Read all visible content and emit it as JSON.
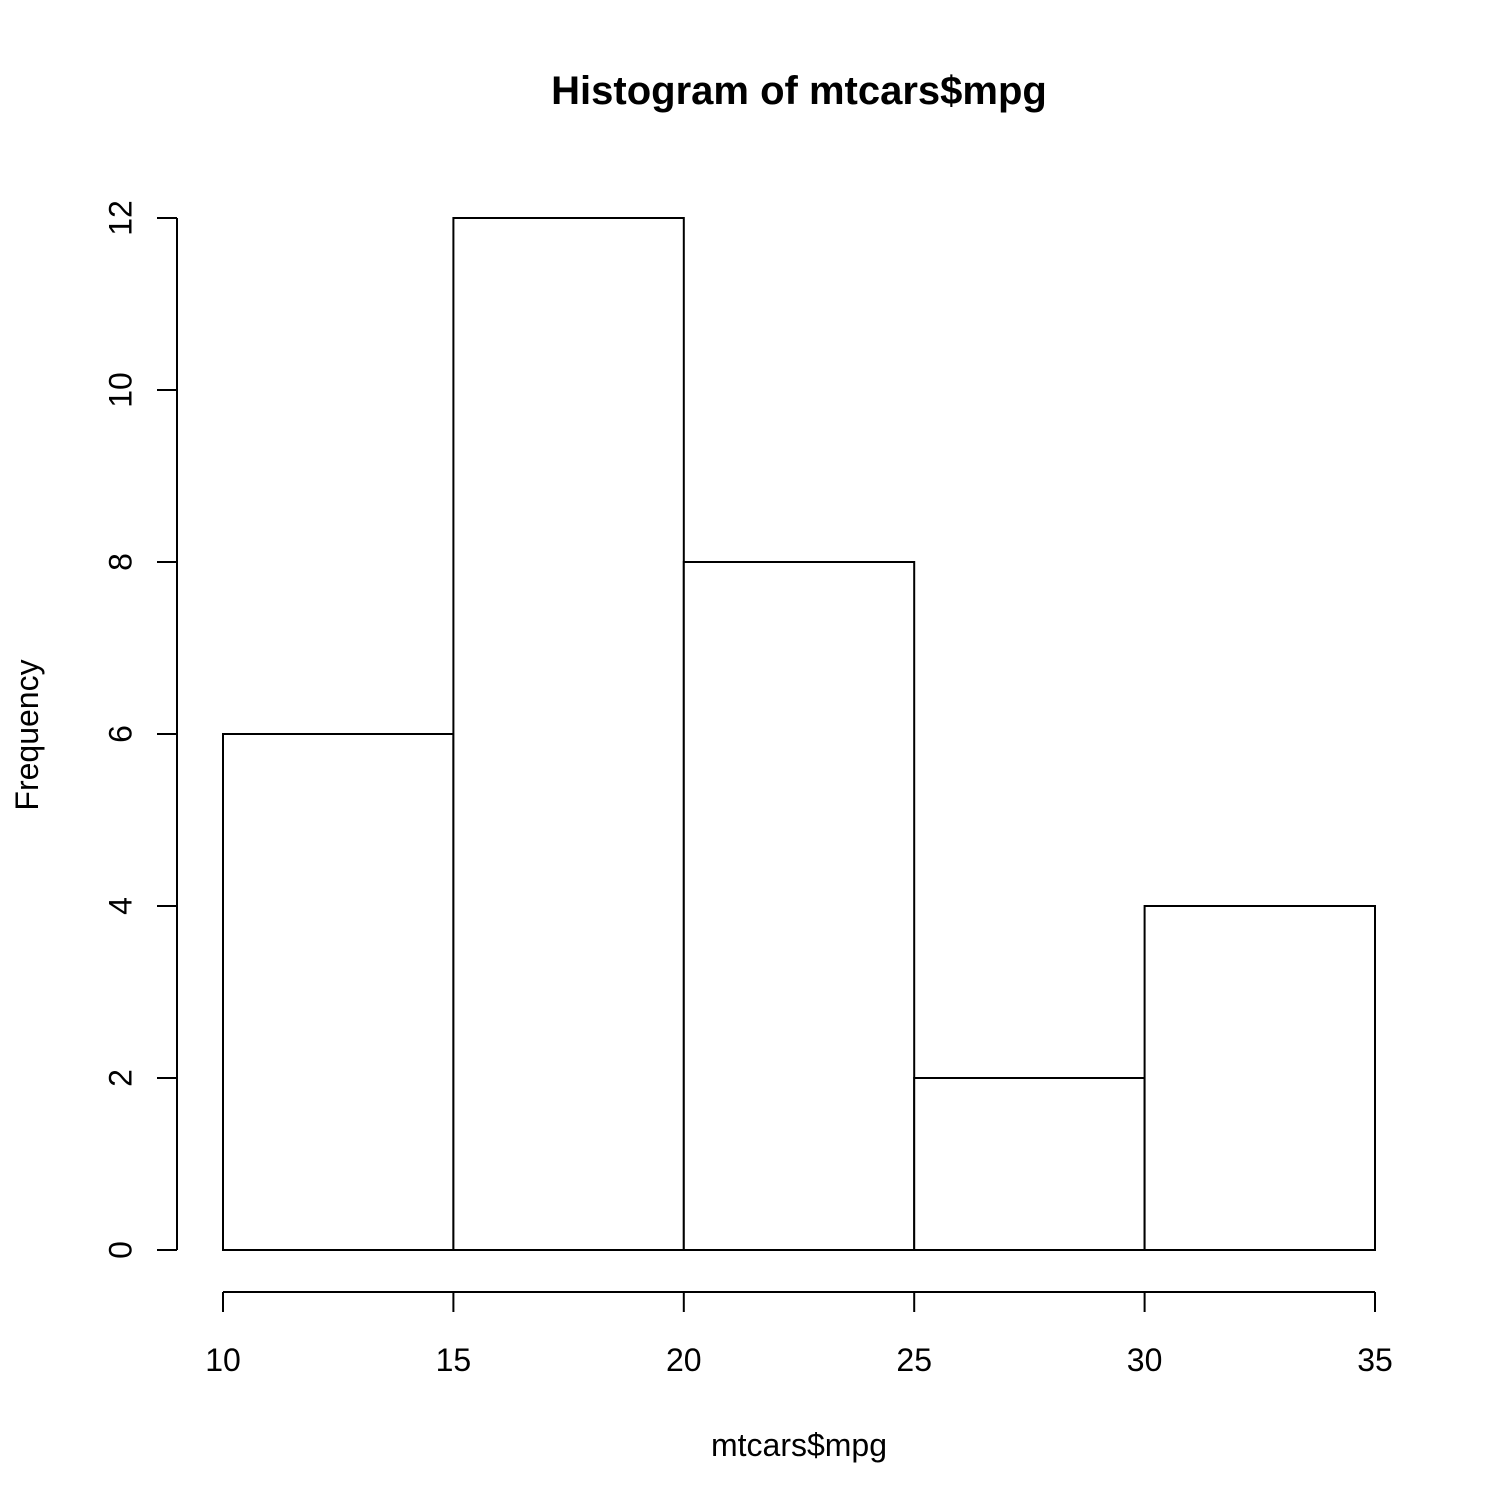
{
  "chart_data": {
    "type": "bar",
    "title": "Histogram of mtcars$mpg",
    "xlabel": "mtcars$mpg",
    "ylabel": "Frequency",
    "bins": [
      {
        "from": 10,
        "to": 15,
        "value": 6
      },
      {
        "from": 15,
        "to": 20,
        "value": 12
      },
      {
        "from": 20,
        "to": 25,
        "value": 8
      },
      {
        "from": 25,
        "to": 30,
        "value": 2
      },
      {
        "from": 30,
        "to": 35,
        "value": 4
      }
    ],
    "xlim": [
      10,
      35
    ],
    "ylim": [
      0,
      12
    ],
    "x_ticks": [
      "10",
      "15",
      "20",
      "25",
      "30",
      "35"
    ],
    "y_ticks": [
      "0",
      "2",
      "4",
      "6",
      "8",
      "10",
      "12"
    ],
    "grid": false,
    "colors": {
      "bar_fill": "#ffffff",
      "bar_stroke": "#000000"
    }
  }
}
